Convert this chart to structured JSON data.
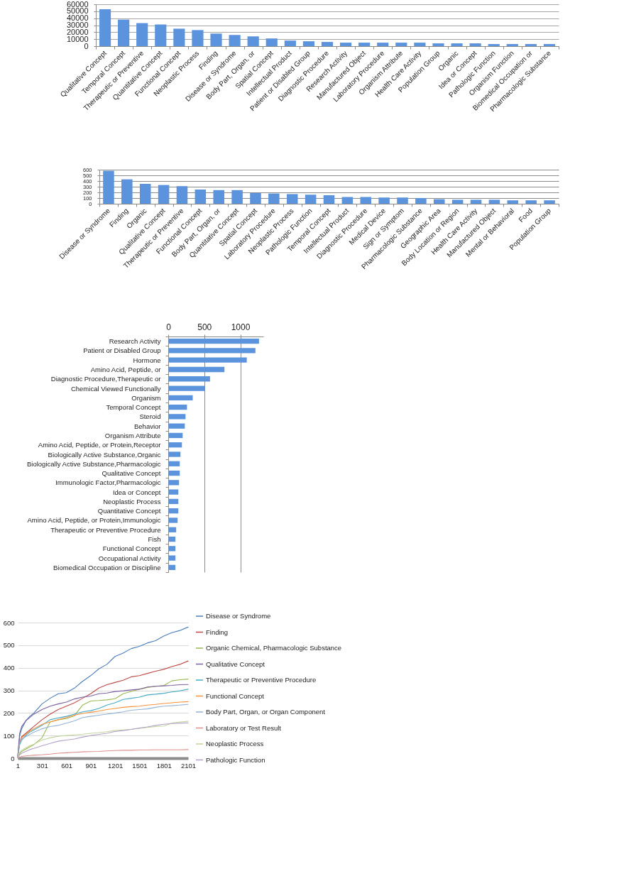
{
  "chart_data": [
    {
      "type": "bar",
      "categories": [
        "Qualitative Concept",
        "Temporal Concept",
        "Therapeutic or Preventive",
        "Quantitative Concept",
        "Functional Concept",
        "Neoplastic Process",
        "Finding",
        "Disease or Syndrome",
        "Body Part, Organ, or",
        "Spatial Concept",
        "Intellectual Product",
        "Patient or Disabled Group",
        "Diagnostic Procedure",
        "Research Activity",
        "Manufactured Object",
        "Laboratory Procedure",
        "Organism Attribute",
        "Health Care Activity",
        "Population Group",
        "Organic",
        "Idea or Concept",
        "Pathologic Function",
        "Organism Function",
        "Biomedical Occupation or",
        "Pharmacologic Substance"
      ],
      "values": [
        53000,
        38000,
        33000,
        31000,
        25000,
        23000,
        18000,
        16000,
        14000,
        11000,
        8000,
        7000,
        6000,
        5000,
        5000,
        5000,
        5000,
        5000,
        4000,
        4000,
        4000,
        3000,
        3000,
        3000,
        3000
      ],
      "color": "#5b93dd",
      "ylim": [
        0,
        60000
      ],
      "yticks": [
        0,
        10000,
        20000,
        30000,
        40000,
        50000,
        60000
      ],
      "grid": "y"
    },
    {
      "type": "bar",
      "categories": [
        "Disease or Syndrome",
        "Finding",
        "Organic",
        "Qualitative Concept",
        "Therapeutic or Preventive",
        "Functional Concept",
        "Body Part, Organ, or",
        "Quantitative Concept",
        "Spatial Concept",
        "Laboratory Procedure",
        "Neoplastic Process",
        "Pathologic Function",
        "Temporal Concept",
        "Intellectual Product",
        "Diagnostic Procedure",
        "Medical Device",
        "Sign or Symptom",
        "Pharmacologic Substance",
        "Geographic Area",
        "Body Location or Region",
        "Health Care Activity",
        "Manufactured Object",
        "Mental or Behavioral",
        "Food",
        "Population Group"
      ],
      "values": [
        580,
        430,
        350,
        330,
        310,
        250,
        240,
        240,
        190,
        180,
        170,
        160,
        150,
        120,
        120,
        110,
        110,
        100,
        80,
        70,
        70,
        70,
        60,
        60,
        60
      ],
      "color": "#5b93dd",
      "ylim": [
        0,
        600
      ],
      "yticks": [
        0,
        100,
        200,
        300,
        400,
        500,
        600
      ],
      "grid": "y"
    },
    {
      "type": "bar",
      "orientation": "horizontal",
      "categories": [
        "Research Activity",
        "Patient or Disabled Group",
        "Hormone",
        "Amino Acid, Peptide, or",
        "Diagnostic Procedure,Therapeutic or",
        "Chemical Viewed Functionally",
        "Organism",
        "Temporal Concept",
        "Steroid",
        "Behavior",
        "Organism Attribute",
        "Amino Acid, Peptide, or Protein,Receptor",
        "Biologically Active Substance,Organic",
        "Biologically Active Substance,Pharmacologic",
        "Qualitative Concept",
        "Immunologic Factor,Pharmacologic",
        "Idea or Concept",
        "Neoplastic Process",
        "Quantitative Concept",
        "Amino Acid, Peptide, or Protein,Immunologic",
        "Therapeutic or Preventive Procedure",
        "Fish",
        "Functional Concept",
        "Occupational Activity",
        "Biomedical Occupation or Discipline"
      ],
      "values": [
        1260,
        1210,
        1090,
        780,
        580,
        510,
        340,
        260,
        240,
        230,
        200,
        190,
        170,
        160,
        160,
        150,
        140,
        140,
        140,
        130,
        110,
        100,
        100,
        100,
        100
      ],
      "color": "#5b93dd",
      "xlim": [
        0,
        1320
      ],
      "xticks": [
        0,
        500,
        1000
      ],
      "grid": "x"
    },
    {
      "type": "line",
      "x": [
        1,
        25,
        50,
        100,
        150,
        200,
        300,
        400,
        500,
        600,
        700,
        800,
        900,
        1000,
        1100,
        1200,
        1300,
        1400,
        1500,
        1600,
        1700,
        1800,
        1900,
        2000,
        2101
      ],
      "series": [
        {
          "name": "Disease or Syndrome",
          "color": "#4a7ebb",
          "values": [
            5,
            100,
            130,
            165,
            185,
            200,
            240,
            265,
            285,
            290,
            310,
            340,
            365,
            395,
            415,
            450,
            465,
            485,
            495,
            510,
            520,
            540,
            555,
            565,
            580
          ]
        },
        {
          "name": "Finding",
          "color": "#be4b48",
          "values": [
            3,
            70,
            95,
            110,
            125,
            140,
            170,
            195,
            215,
            230,
            245,
            265,
            285,
            310,
            325,
            335,
            345,
            360,
            365,
            375,
            385,
            393,
            405,
            415,
            430
          ]
        },
        {
          "name": "Organic Chemical, Pharmacologic Substance",
          "color": "#98b954",
          "values": [
            2,
            20,
            30,
            40,
            50,
            60,
            90,
            160,
            170,
            175,
            188,
            235,
            253,
            255,
            258,
            263,
            285,
            295,
            305,
            313,
            318,
            321,
            342,
            347,
            350
          ]
        },
        {
          "name": "Qualitative Concept",
          "color": "#7d60a0",
          "values": [
            10,
            110,
            140,
            165,
            180,
            195,
            215,
            230,
            240,
            248,
            262,
            270,
            275,
            285,
            288,
            295,
            298,
            302,
            305,
            315,
            318,
            320,
            322,
            325,
            326
          ]
        },
        {
          "name": "Therapeutic or Preventive Procedure",
          "color": "#46aac5",
          "values": [
            3,
            60,
            80,
            100,
            115,
            125,
            145,
            170,
            178,
            185,
            195,
            205,
            210,
            220,
            235,
            245,
            260,
            265,
            270,
            280,
            283,
            287,
            293,
            298,
            305
          ]
        },
        {
          "name": "Functional Concept",
          "color": "#f69240",
          "values": [
            3,
            70,
            90,
            105,
            120,
            130,
            150,
            160,
            170,
            180,
            190,
            198,
            203,
            208,
            215,
            220,
            225,
            228,
            230,
            235,
            238,
            242,
            245,
            248,
            250
          ]
        },
        {
          "name": "Body Part, Organ, or Organ Component",
          "color": "#95b3d7",
          "values": [
            3,
            70,
            85,
            95,
            105,
            115,
            130,
            140,
            145,
            155,
            165,
            180,
            185,
            190,
            195,
            200,
            205,
            212,
            215,
            218,
            225,
            230,
            232,
            235,
            238
          ]
        },
        {
          "name": "Laboratory or Test Result",
          "color": "#dd8f8d",
          "values": [
            0,
            5,
            8,
            10,
            12,
            13,
            15,
            18,
            22,
            24,
            26,
            28,
            29,
            30,
            32,
            34,
            35,
            35,
            36,
            36,
            37,
            37,
            37,
            37,
            38
          ]
        },
        {
          "name": "Neoplastic Process",
          "color": "#c3d69b",
          "values": [
            2,
            25,
            35,
            45,
            55,
            62,
            80,
            90,
            97,
            100,
            103,
            106,
            110,
            113,
            117,
            122,
            125,
            128,
            132,
            136,
            140,
            142,
            155,
            160,
            163
          ]
        },
        {
          "name": "Pathologic Function",
          "color": "#b3a2c7",
          "values": [
            1,
            15,
            22,
            30,
            38,
            43,
            55,
            65,
            75,
            80,
            85,
            93,
            100,
            105,
            110,
            118,
            122,
            127,
            133,
            138,
            145,
            150,
            153,
            155,
            156
          ]
        }
      ],
      "xlim": [
        1,
        2101
      ],
      "xticks": [
        1,
        301,
        601,
        901,
        1201,
        1501,
        1801,
        2101
      ],
      "ylim": [
        0,
        600
      ],
      "yticks": [
        0,
        100,
        200,
        300,
        400,
        500,
        600
      ],
      "grid": "y",
      "legend": "right"
    }
  ]
}
